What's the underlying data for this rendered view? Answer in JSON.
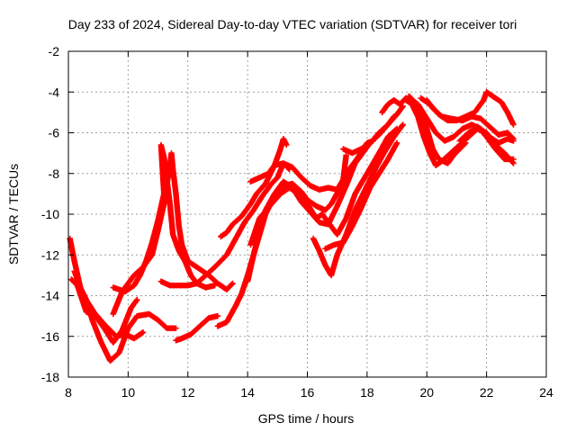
{
  "chart_data": {
    "type": "scatter",
    "title": "Day 233 of 2024, Sidereal Day-to-day VTEC variation (SDTVAR) for receiver tori",
    "xlabel": "GPS time / hours",
    "ylabel": "SDTVAR / TECUs",
    "xlim": [
      8,
      24
    ],
    "ylim": [
      -18,
      -2
    ],
    "xticks": [
      8,
      10,
      12,
      14,
      16,
      18,
      20,
      22,
      24
    ],
    "yticks": [
      -2,
      -4,
      -6,
      -8,
      -10,
      -12,
      -14,
      -16,
      -18
    ],
    "grid": true,
    "marker": "plus",
    "series_color": "#ff0000",
    "tracks": [
      [
        [
          8.05,
          -11.2
        ],
        [
          8.2,
          -12.3
        ],
        [
          8.4,
          -13.6
        ],
        [
          8.6,
          -14.2
        ],
        [
          8.8,
          -15.2
        ],
        [
          9.1,
          -16.3
        ],
        [
          9.4,
          -17.2
        ],
        [
          9.7,
          -16.8
        ],
        [
          10.0,
          -15.6
        ],
        [
          10.3,
          -15.0
        ],
        [
          10.7,
          -14.9
        ],
        [
          11.0,
          -15.2
        ],
        [
          11.3,
          -15.6
        ],
        [
          11.6,
          -15.6
        ]
      ],
      [
        [
          8.1,
          -13.2
        ],
        [
          8.3,
          -13.5
        ],
        [
          8.6,
          -14.8
        ],
        [
          8.9,
          -15.0
        ],
        [
          9.2,
          -15.6
        ],
        [
          9.5,
          -16.3
        ],
        [
          9.8,
          -15.7
        ],
        [
          10.1,
          -14.6
        ],
        [
          10.3,
          -14.2
        ]
      ],
      [
        [
          8.2,
          -12.8
        ],
        [
          8.5,
          -14.0
        ],
        [
          8.9,
          -14.9
        ],
        [
          9.2,
          -15.4
        ],
        [
          9.6,
          -16.0
        ],
        [
          9.9,
          -15.9
        ],
        [
          10.2,
          -16.1
        ],
        [
          10.5,
          -15.8
        ]
      ],
      [
        [
          9.5,
          -14.9
        ],
        [
          9.8,
          -13.8
        ],
        [
          10.2,
          -13.0
        ],
        [
          10.5,
          -12.6
        ],
        [
          10.8,
          -12.0
        ],
        [
          11.0,
          -10.8
        ],
        [
          11.2,
          -9.5
        ],
        [
          11.3,
          -8.5
        ],
        [
          11.4,
          -7.6
        ],
        [
          11.45,
          -7.0
        ],
        [
          11.5,
          -7.8
        ],
        [
          11.6,
          -9.0
        ],
        [
          11.7,
          -10.6
        ],
        [
          11.8,
          -11.5
        ],
        [
          12.0,
          -12.3
        ],
        [
          12.3,
          -12.6
        ],
        [
          12.7,
          -13.0
        ],
        [
          13.0,
          -13.4
        ],
        [
          13.3,
          -13.7
        ],
        [
          13.5,
          -13.4
        ]
      ],
      [
        [
          9.5,
          -13.6
        ],
        [
          9.9,
          -13.8
        ],
        [
          10.2,
          -13.5
        ],
        [
          10.4,
          -13.0
        ],
        [
          10.6,
          -12.3
        ],
        [
          10.8,
          -11.4
        ],
        [
          11.0,
          -10.3
        ],
        [
          11.2,
          -9.0
        ],
        [
          11.1,
          -6.6
        ],
        [
          11.2,
          -7.2
        ],
        [
          11.4,
          -9.5
        ],
        [
          11.5,
          -11.0
        ],
        [
          11.7,
          -11.8
        ],
        [
          11.9,
          -12.3
        ],
        [
          12.1,
          -13.0
        ],
        [
          12.3,
          -13.4
        ],
        [
          12.6,
          -13.6
        ],
        [
          12.9,
          -13.5
        ]
      ],
      [
        [
          11.1,
          -13.3
        ],
        [
          11.4,
          -13.5
        ],
        [
          11.7,
          -13.5
        ],
        [
          12.0,
          -13.5
        ],
        [
          12.3,
          -13.4
        ],
        [
          12.6,
          -13.0
        ],
        [
          12.9,
          -12.6
        ],
        [
          13.1,
          -12.3
        ],
        [
          13.3,
          -12.0
        ],
        [
          13.6,
          -11.2
        ],
        [
          13.9,
          -10.4
        ],
        [
          14.2,
          -9.8
        ],
        [
          14.5,
          -9.1
        ],
        [
          14.8,
          -8.5
        ],
        [
          15.0,
          -8.2
        ],
        [
          15.2,
          -7.5
        ],
        [
          15.4,
          -7.8
        ]
      ],
      [
        [
          11.6,
          -16.2
        ],
        [
          11.8,
          -16.1
        ],
        [
          12.1,
          -15.9
        ],
        [
          12.4,
          -15.5
        ],
        [
          12.7,
          -15.1
        ],
        [
          13.0,
          -15.0
        ]
      ],
      [
        [
          13.1,
          -11.1
        ],
        [
          13.3,
          -10.9
        ],
        [
          13.5,
          -10.5
        ],
        [
          13.8,
          -10.1
        ],
        [
          14.1,
          -9.5
        ],
        [
          14.3,
          -9.0
        ],
        [
          14.6,
          -8.5
        ],
        [
          14.9,
          -7.6
        ],
        [
          15.1,
          -6.8
        ],
        [
          15.2,
          -6.3
        ],
        [
          15.3,
          -6.6
        ]
      ],
      [
        [
          13.0,
          -15.5
        ],
        [
          13.3,
          -15.3
        ],
        [
          13.6,
          -14.5
        ],
        [
          13.8,
          -13.9
        ],
        [
          14.0,
          -13.0
        ],
        [
          14.2,
          -12.0
        ],
        [
          14.4,
          -11.0
        ],
        [
          14.6,
          -10.0
        ],
        [
          14.9,
          -9.1
        ],
        [
          15.2,
          -8.6
        ],
        [
          15.5,
          -8.5
        ],
        [
          15.8,
          -8.9
        ],
        [
          16.0,
          -9.3
        ],
        [
          16.3,
          -9.6
        ],
        [
          16.6,
          -9.8
        ],
        [
          16.8,
          -9.5
        ],
        [
          17.1,
          -8.7
        ],
        [
          17.4,
          -7.8
        ],
        [
          17.7,
          -7.2
        ],
        [
          18.0,
          -6.5
        ],
        [
          18.2,
          -6.4
        ]
      ],
      [
        [
          14.0,
          -13.3
        ],
        [
          14.2,
          -12.0
        ],
        [
          14.4,
          -10.8
        ],
        [
          14.6,
          -9.8
        ],
        [
          14.9,
          -9.0
        ],
        [
          15.2,
          -8.4
        ],
        [
          15.5,
          -8.7
        ],
        [
          15.8,
          -9.4
        ],
        [
          16.1,
          -9.9
        ],
        [
          16.4,
          -10.4
        ],
        [
          16.7,
          -10.5
        ],
        [
          17.0,
          -9.6
        ],
        [
          17.3,
          -8.6
        ],
        [
          17.6,
          -7.5
        ],
        [
          18.0,
          -6.7
        ],
        [
          18.4,
          -6.0
        ],
        [
          18.7,
          -5.6
        ],
        [
          18.9,
          -5.2
        ]
      ],
      [
        [
          14.1,
          -11.5
        ],
        [
          14.4,
          -10.2
        ],
        [
          14.8,
          -9.5
        ],
        [
          15.1,
          -9.0
        ],
        [
          15.4,
          -8.7
        ],
        [
          15.7,
          -9.0
        ],
        [
          16.0,
          -9.5
        ],
        [
          16.3,
          -10.2
        ],
        [
          16.5,
          -10.0
        ],
        [
          16.8,
          -10.6
        ],
        [
          17.0,
          -11.0
        ],
        [
          17.3,
          -10.2
        ],
        [
          17.6,
          -9.0
        ],
        [
          18.0,
          -8.0
        ],
        [
          18.4,
          -7.0
        ],
        [
          18.7,
          -6.2
        ],
        [
          19.0,
          -5.8
        ]
      ],
      [
        [
          14.1,
          -8.4
        ],
        [
          14.4,
          -8.2
        ],
        [
          14.7,
          -8.0
        ],
        [
          14.9,
          -7.6
        ],
        [
          15.2,
          -7.5
        ],
        [
          15.5,
          -7.7
        ],
        [
          15.8,
          -8.2
        ],
        [
          16.1,
          -8.6
        ],
        [
          16.4,
          -8.8
        ],
        [
          16.7,
          -8.7
        ],
        [
          17.0,
          -8.8
        ],
        [
          17.2,
          -8.3
        ],
        [
          17.3,
          -7.1
        ]
      ],
      [
        [
          17.2,
          -6.8
        ],
        [
          17.5,
          -7.0
        ],
        [
          17.8,
          -6.8
        ],
        [
          18.1,
          -6.5
        ],
        [
          18.4,
          -6.1
        ],
        [
          18.7,
          -5.6
        ],
        [
          19.0,
          -5.1
        ],
        [
          19.2,
          -4.7
        ]
      ],
      [
        [
          16.2,
          -11.2
        ],
        [
          16.4,
          -11.8
        ],
        [
          16.6,
          -12.5
        ],
        [
          16.8,
          -13.0
        ],
        [
          17.0,
          -12.0
        ],
        [
          17.3,
          -11.0
        ],
        [
          17.6,
          -9.8
        ],
        [
          18.0,
          -8.6
        ],
        [
          18.3,
          -7.7
        ],
        [
          18.6,
          -6.9
        ],
        [
          18.9,
          -6.2
        ],
        [
          19.2,
          -5.6
        ]
      ],
      [
        [
          16.6,
          -11.7
        ],
        [
          16.9,
          -11.5
        ],
        [
          17.2,
          -11.4
        ],
        [
          17.5,
          -10.6
        ],
        [
          17.8,
          -9.7
        ],
        [
          18.1,
          -8.7
        ],
        [
          18.4,
          -8.0
        ],
        [
          18.7,
          -7.3
        ],
        [
          19.0,
          -6.5
        ]
      ],
      [
        [
          18.5,
          -5.0
        ],
        [
          18.7,
          -4.6
        ],
        [
          18.9,
          -4.4
        ],
        [
          19.1,
          -4.6
        ],
        [
          19.3,
          -4.3
        ]
      ],
      [
        [
          19.3,
          -4.4
        ],
        [
          19.5,
          -4.6
        ],
        [
          19.7,
          -5.2
        ],
        [
          19.9,
          -6.2
        ],
        [
          20.1,
          -7.0
        ],
        [
          20.3,
          -7.6
        ],
        [
          20.5,
          -7.4
        ],
        [
          20.8,
          -7.0
        ],
        [
          21.1,
          -6.6
        ],
        [
          21.4,
          -6.2
        ],
        [
          21.7,
          -5.8
        ],
        [
          22.0,
          -6.0
        ],
        [
          22.3,
          -6.6
        ],
        [
          22.6,
          -7.0
        ],
        [
          22.9,
          -7.5
        ]
      ],
      [
        [
          19.4,
          -4.2
        ],
        [
          19.6,
          -4.5
        ],
        [
          19.8,
          -5.0
        ],
        [
          20.0,
          -5.8
        ],
        [
          20.2,
          -6.8
        ],
        [
          20.4,
          -7.3
        ],
        [
          20.7,
          -7.5
        ],
        [
          20.9,
          -7.1
        ],
        [
          21.1,
          -6.8
        ],
        [
          21.3,
          -6.5
        ]
      ],
      [
        [
          19.5,
          -4.4
        ],
        [
          19.7,
          -4.6
        ],
        [
          20.0,
          -5.3
        ],
        [
          20.3,
          -6.0
        ],
        [
          20.6,
          -6.4
        ],
        [
          20.9,
          -6.2
        ],
        [
          21.2,
          -5.8
        ],
        [
          21.5,
          -5.6
        ],
        [
          21.8,
          -5.8
        ],
        [
          22.1,
          -6.2
        ],
        [
          22.4,
          -6.5
        ],
        [
          22.7,
          -6.3
        ],
        [
          22.9,
          -6.4
        ]
      ],
      [
        [
          19.8,
          -4.3
        ],
        [
          20.1,
          -4.6
        ],
        [
          20.4,
          -5.1
        ],
        [
          20.7,
          -5.4
        ],
        [
          21.0,
          -5.4
        ],
        [
          21.3,
          -5.2
        ],
        [
          21.6,
          -5.0
        ],
        [
          21.9,
          -4.4
        ],
        [
          22.0,
          -4.0
        ],
        [
          22.3,
          -4.3
        ],
        [
          22.5,
          -4.5
        ],
        [
          22.7,
          -5.0
        ],
        [
          22.9,
          -5.6
        ]
      ],
      [
        [
          20.0,
          -4.4
        ],
        [
          20.2,
          -4.8
        ],
        [
          20.5,
          -5.2
        ],
        [
          20.8,
          -5.3
        ],
        [
          21.2,
          -5.4
        ],
        [
          21.5,
          -5.2
        ],
        [
          21.8,
          -5.3
        ],
        [
          22.1,
          -5.7
        ],
        [
          22.4,
          -6.1
        ],
        [
          22.7,
          -6.0
        ],
        [
          22.9,
          -6.3
        ]
      ],
      [
        [
          21.1,
          -6.4
        ],
        [
          21.4,
          -6.0
        ],
        [
          21.7,
          -5.7
        ],
        [
          22.0,
          -6.2
        ],
        [
          22.3,
          -6.8
        ],
        [
          22.6,
          -7.3
        ],
        [
          22.9,
          -7.3
        ]
      ]
    ]
  }
}
